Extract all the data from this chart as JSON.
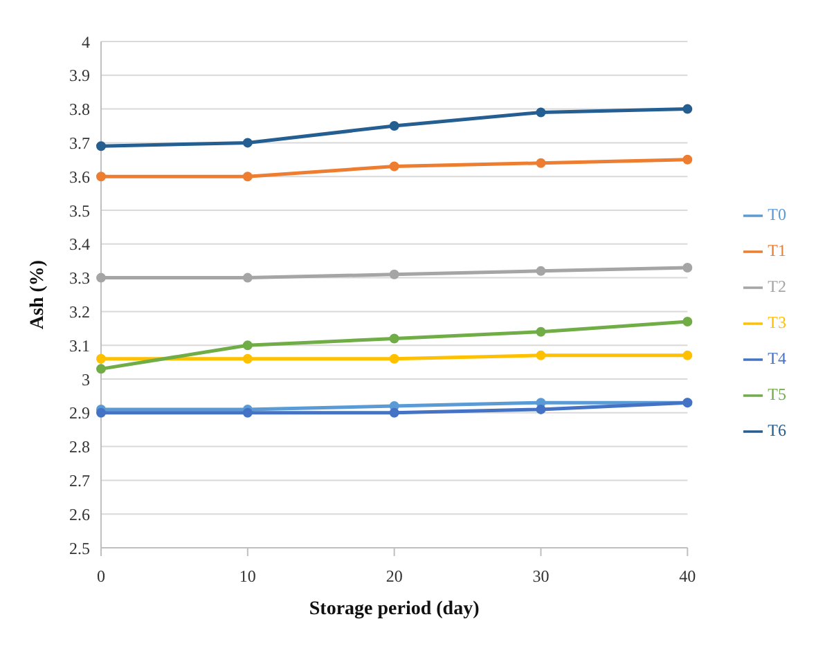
{
  "chart_data": {
    "type": "line",
    "xlabel": "Storage period (day)",
    "ylabel": "Ash  (%)",
    "categories": [
      "0",
      "10",
      "20",
      "30",
      "40"
    ],
    "series": [
      {
        "name": "T0",
        "color": "#5b9bd5",
        "values": [
          2.91,
          2.91,
          2.92,
          2.93,
          2.93
        ]
      },
      {
        "name": "T1",
        "color": "#ed7d31",
        "values": [
          3.6,
          3.6,
          3.63,
          3.64,
          3.65
        ]
      },
      {
        "name": "T2",
        "color": "#a5a5a5",
        "values": [
          3.3,
          3.3,
          3.31,
          3.32,
          3.33
        ]
      },
      {
        "name": "T3",
        "color": "#ffc000",
        "values": [
          3.06,
          3.06,
          3.06,
          3.07,
          3.07
        ]
      },
      {
        "name": "T4",
        "color": "#4472c4",
        "values": [
          2.9,
          2.9,
          2.9,
          2.91,
          2.93
        ]
      },
      {
        "name": "T5",
        "color": "#70ad47",
        "values": [
          3.03,
          3.1,
          3.12,
          3.14,
          3.17
        ]
      },
      {
        "name": "T6",
        "color": "#255e91",
        "values": [
          3.69,
          3.7,
          3.75,
          3.79,
          3.8
        ]
      }
    ],
    "ylim": [
      2.5,
      4
    ],
    "yticks": [
      2.5,
      2.6,
      2.7,
      2.8,
      2.9,
      3,
      3.1,
      3.2,
      3.3,
      3.4,
      3.5,
      3.6,
      3.7,
      3.8,
      3.9,
      4
    ],
    "grid": "y",
    "legend": "right",
    "marker": "circle",
    "line_style": "solid"
  }
}
